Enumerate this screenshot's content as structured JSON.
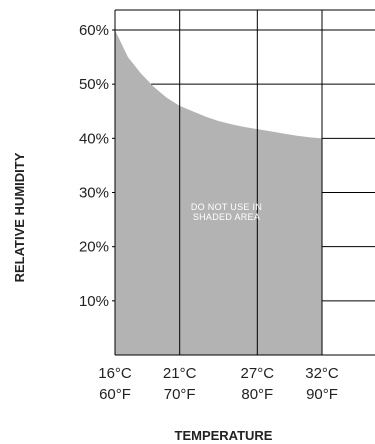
{
  "chart_data": {
    "type": "area",
    "title": "",
    "xlabel": "TEMPERATURE",
    "ylabel": "RELATIVE HUMIDITY",
    "annotation": "DO NOT USE IN\nSHADED AREA",
    "x_ticks": [
      {
        "value": 16,
        "label_c": "16°C",
        "label_f": "60°F"
      },
      {
        "value": 21,
        "label_c": "21°C",
        "label_f": "70°F"
      },
      {
        "value": 27,
        "label_c": "27°C",
        "label_f": "80°F"
      },
      {
        "value": 32,
        "label_c": "32°C",
        "label_f": "90°F"
      }
    ],
    "y_ticks": [
      {
        "value": 10,
        "label": "10%"
      },
      {
        "value": 20,
        "label": "20%"
      },
      {
        "value": 30,
        "label": "30%"
      },
      {
        "value": 40,
        "label": "40%"
      },
      {
        "value": 50,
        "label": "50%"
      },
      {
        "value": 60,
        "label": "60%"
      }
    ],
    "xlim": [
      16,
      32
    ],
    "ylim": [
      0,
      60
    ],
    "shaded_boundary": [
      {
        "x": 16,
        "y": 60
      },
      {
        "x": 17,
        "y": 55
      },
      {
        "x": 18,
        "y": 52
      },
      {
        "x": 19,
        "y": 49.5
      },
      {
        "x": 20,
        "y": 47.5
      },
      {
        "x": 21,
        "y": 46
      },
      {
        "x": 22,
        "y": 45
      },
      {
        "x": 23,
        "y": 44
      },
      {
        "x": 24,
        "y": 43.2
      },
      {
        "x": 25,
        "y": 42.6
      },
      {
        "x": 26,
        "y": 42.1
      },
      {
        "x": 27,
        "y": 41.7
      },
      {
        "x": 28,
        "y": 41.3
      },
      {
        "x": 29,
        "y": 40.9
      },
      {
        "x": 30,
        "y": 40.5
      },
      {
        "x": 31,
        "y": 40.2
      },
      {
        "x": 32,
        "y": 40
      }
    ],
    "shade_color": "#b3b3b3",
    "grid": true
  }
}
